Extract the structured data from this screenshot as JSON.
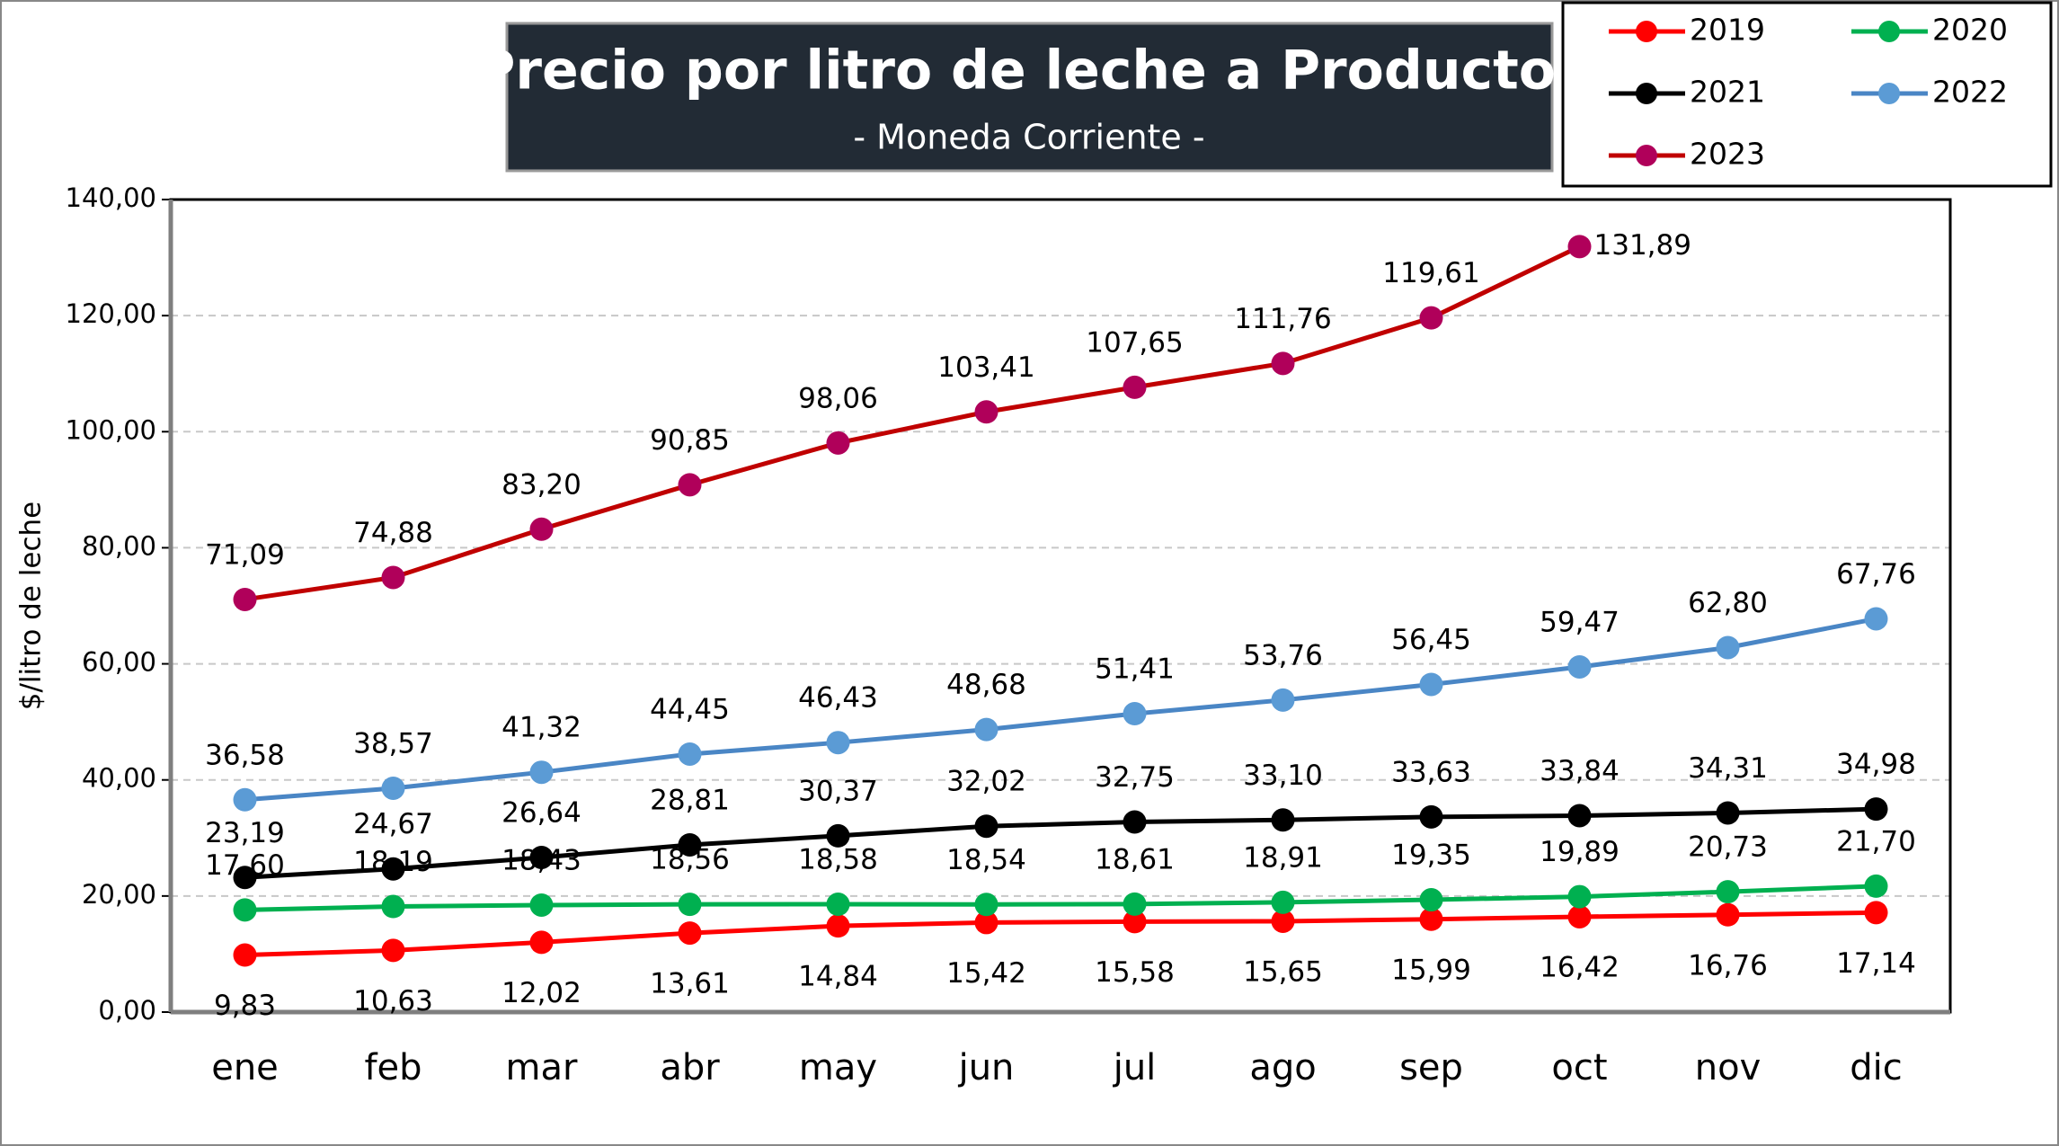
{
  "chart_data": {
    "type": "line",
    "title": "Precio por litro de leche a Productor",
    "subtitle": "- Moneda Corriente -",
    "y_label": "$/litro de leche",
    "categories": [
      "ene",
      "feb",
      "mar",
      "abr",
      "may",
      "jun",
      "jul",
      "ago",
      "sep",
      "oct",
      "nov",
      "dic"
    ],
    "ylim": [
      0,
      140
    ],
    "yticks": [
      {
        "value": 0,
        "label": "0,00"
      },
      {
        "value": 20,
        "label": "20,00"
      },
      {
        "value": 40,
        "label": "40,00"
      },
      {
        "value": 60,
        "label": "60,00"
      },
      {
        "value": 80,
        "label": "80,00"
      },
      {
        "value": 100,
        "label": "100,00"
      },
      {
        "value": 120,
        "label": "120,00"
      },
      {
        "value": 140,
        "label": "140,00"
      }
    ],
    "grid": true,
    "legend": "top-right",
    "series": [
      {
        "name": "2019",
        "color": "#ff0000",
        "marker_color": "#ff0000",
        "label_position": "below",
        "values": [
          9.83,
          10.63,
          12.02,
          13.61,
          14.84,
          15.42,
          15.58,
          15.65,
          15.99,
          16.42,
          16.76,
          17.14
        ],
        "value_labels": [
          "9,83",
          "10,63",
          "12,02",
          "13,61",
          "14,84",
          "15,42",
          "15,58",
          "15,65",
          "15,99",
          "16,42",
          "16,76",
          "17,14"
        ]
      },
      {
        "name": "2020",
        "color": "#00b050",
        "marker_color": "#00b050",
        "label_position": "above",
        "values": [
          17.6,
          18.19,
          18.43,
          18.56,
          18.58,
          18.54,
          18.61,
          18.91,
          19.35,
          19.89,
          20.73,
          21.7
        ],
        "value_labels": [
          "17,60",
          "18,19",
          "18,43",
          "18,56",
          "18,58",
          "18,54",
          "18,61",
          "18,91",
          "19,35",
          "19,89",
          "20,73",
          "21,70"
        ]
      },
      {
        "name": "2021",
        "color": "#000000",
        "marker_color": "#000000",
        "label_position": "above",
        "values": [
          23.19,
          24.67,
          26.64,
          28.81,
          30.37,
          32.02,
          32.75,
          33.1,
          33.63,
          33.84,
          34.31,
          34.98
        ],
        "value_labels": [
          "23,19",
          "24,67",
          "26,64",
          "28,81",
          "30,37",
          "32,02",
          "32,75",
          "33,10",
          "33,63",
          "33,84",
          "34,31",
          "34,98"
        ]
      },
      {
        "name": "2022",
        "color": "#4a86c5",
        "marker_color": "#5b9bd5",
        "label_position": "above",
        "values": [
          36.58,
          38.57,
          41.32,
          44.45,
          46.43,
          48.68,
          51.41,
          53.76,
          56.45,
          59.47,
          62.8,
          67.76
        ],
        "value_labels": [
          "36,58",
          "38,57",
          "41,32",
          "44,45",
          "46,43",
          "48,68",
          "51,41",
          "53,76",
          "56,45",
          "59,47",
          "62,80",
          "67,76"
        ]
      },
      {
        "name": "2023",
        "color": "#c00000",
        "marker_color": "#b0005a",
        "label_position": "above",
        "values": [
          71.09,
          74.88,
          83.2,
          90.85,
          98.06,
          103.41,
          107.65,
          111.76,
          119.61,
          131.89,
          null,
          null
        ],
        "value_labels": [
          "71,09",
          "74,88",
          "83,20",
          "90,85",
          "98,06",
          "103,41",
          "107,65",
          "111,76",
          "119,61",
          "131,89",
          null,
          null
        ]
      }
    ]
  }
}
